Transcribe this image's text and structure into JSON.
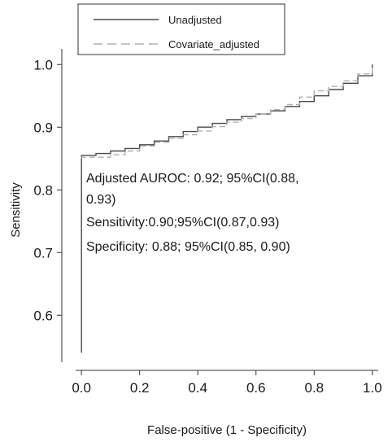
{
  "chart_data": {
    "type": "line",
    "xlabel": "False-positive (1 - Specificity)",
    "ylabel": "Sensitivity",
    "xlim": [
      -0.02,
      1.02
    ],
    "ylim": [
      0.525,
      1.025
    ],
    "x_ticks": [
      0.0,
      0.2,
      0.4,
      0.6,
      0.8,
      1.0
    ],
    "x_tick_labels": [
      "0.0",
      "0.2",
      "0.4",
      "0.6",
      "0.8",
      "1.0"
    ],
    "y_ticks": [
      0.6,
      0.7,
      0.8,
      0.9,
      1.0
    ],
    "y_tick_labels": [
      "0.6",
      "0.7",
      "0.8",
      "0.9",
      "1.0"
    ],
    "grid": false,
    "legend_position": "top-center",
    "series": [
      {
        "name": "Unadjusted",
        "color": "#4a4a4a",
        "dash": "solid",
        "x": [
          0.0,
          0.0,
          0.05,
          0.1,
          0.15,
          0.2,
          0.25,
          0.3,
          0.35,
          0.4,
          0.45,
          0.5,
          0.55,
          0.6,
          0.65,
          0.7,
          0.75,
          0.8,
          0.85,
          0.9,
          0.95,
          1.0
        ],
        "y": [
          0.54,
          0.855,
          0.858,
          0.862,
          0.866,
          0.872,
          0.878,
          0.885,
          0.893,
          0.9,
          0.906,
          0.912,
          0.917,
          0.921,
          0.926,
          0.933,
          0.941,
          0.95,
          0.96,
          0.97,
          0.982,
          1.0
        ]
      },
      {
        "name": "Covariate_adjusted",
        "color": "#b0b0b0",
        "dash": "dashed",
        "x": [
          0.0,
          0.0,
          0.05,
          0.1,
          0.15,
          0.2,
          0.25,
          0.3,
          0.35,
          0.4,
          0.45,
          0.5,
          0.55,
          0.6,
          0.65,
          0.7,
          0.75,
          0.8,
          0.85,
          0.9,
          0.95,
          1.0
        ],
        "y": [
          0.85,
          0.852,
          0.852,
          0.856,
          0.862,
          0.87,
          0.876,
          0.882,
          0.888,
          0.894,
          0.901,
          0.908,
          0.914,
          0.921,
          0.928,
          0.936,
          0.948,
          0.958,
          0.965,
          0.974,
          0.985,
          1.0
        ]
      }
    ],
    "annotations": [
      "Adjusted AUROC: 0.92; 95%CI(0.88,",
      "0.93)",
      "Sensitivity:0.90;95%CI(0.87,0.93)",
      "Specificity: 0.88; 95%CI(0.85, 0.90)"
    ]
  }
}
